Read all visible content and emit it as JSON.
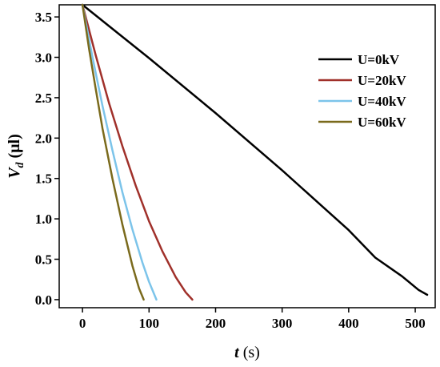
{
  "chart_data": {
    "type": "line",
    "xlabel": {
      "var": "t",
      "unit": " (s)"
    },
    "ylabel": {
      "var": "V",
      "sub": "d",
      "unit": " (μl)"
    },
    "xlim": [
      -35,
      530
    ],
    "ylim": [
      -0.1,
      3.65
    ],
    "xticks": [
      0,
      100,
      200,
      300,
      400,
      500
    ],
    "yticks": [
      0.0,
      0.5,
      1.0,
      1.5,
      2.0,
      2.5,
      3.0,
      3.5
    ],
    "ytick_labels": [
      "0.0",
      "0.5",
      "1.0",
      "1.5",
      "2.0",
      "2.5",
      "3.0",
      "3.5"
    ],
    "legend_position": "right",
    "series": [
      {
        "name": "U=0kV",
        "color": "#000000",
        "x": [
          0,
          100,
          200,
          300,
          400,
          440,
          480,
          505,
          518
        ],
        "y": [
          3.65,
          2.99,
          2.31,
          1.6,
          0.86,
          0.52,
          0.29,
          0.12,
          0.06
        ]
      },
      {
        "name": "U=20kV",
        "color": "#a0302a",
        "x": [
          0,
          20,
          40,
          60,
          80,
          100,
          120,
          140,
          155,
          165
        ],
        "y": [
          3.65,
          3.02,
          2.43,
          1.9,
          1.41,
          0.97,
          0.6,
          0.28,
          0.09,
          0.0
        ]
      },
      {
        "name": "U=40kV",
        "color": "#7cc4ea",
        "x": [
          0,
          15,
          30,
          45,
          60,
          75,
          90,
          100,
          111
        ],
        "y": [
          3.65,
          3.0,
          2.4,
          1.85,
          1.33,
          0.87,
          0.46,
          0.22,
          0.0
        ]
      },
      {
        "name": "U=60kV",
        "color": "#7a6a1c",
        "x": [
          0,
          10,
          20,
          30,
          45,
          60,
          75,
          85,
          92
        ],
        "y": [
          3.65,
          3.1,
          2.6,
          2.12,
          1.5,
          0.93,
          0.42,
          0.14,
          0.0
        ]
      }
    ]
  }
}
